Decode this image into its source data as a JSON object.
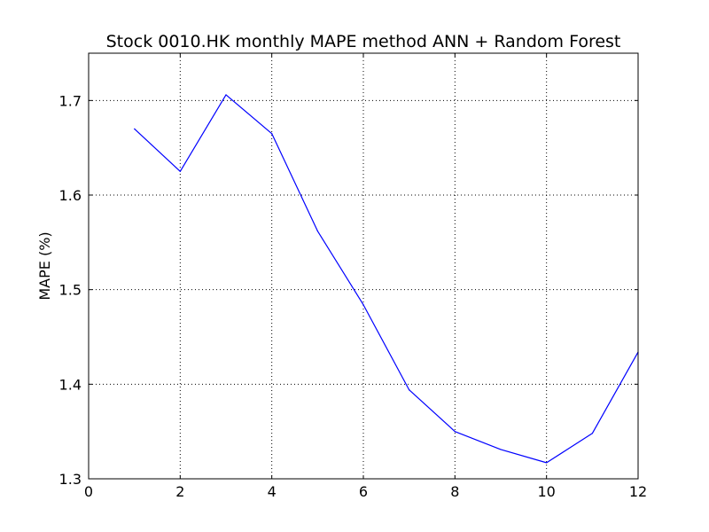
{
  "chart_data": {
    "type": "line",
    "title": "Stock 0010.HK monthly MAPE method ANN + Random Forest",
    "xlabel": "",
    "ylabel": "MAPE (%)",
    "xlim": [
      0,
      12
    ],
    "ylim": [
      1.3,
      1.75
    ],
    "x_ticks": [
      0,
      2,
      4,
      6,
      8,
      10,
      12
    ],
    "y_ticks": [
      1.3,
      1.4,
      1.5,
      1.6,
      1.7
    ],
    "grid": true,
    "legend": "none",
    "series": [
      {
        "color": "#0000ff",
        "x": [
          1,
          2,
          3,
          4,
          5,
          6,
          7,
          8,
          9,
          10,
          11,
          12
        ],
        "y": [
          1.67,
          1.625,
          1.706,
          1.665,
          1.562,
          1.484,
          1.394,
          1.35,
          1.331,
          1.317,
          1.348,
          1.434
        ]
      }
    ]
  }
}
